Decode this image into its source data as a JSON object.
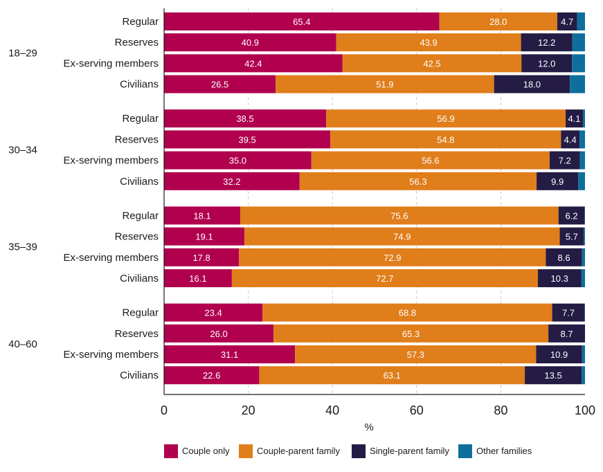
{
  "chart_data": {
    "type": "bar",
    "orientation": "horizontal",
    "stacked": true,
    "title": "",
    "xlabel": "%",
    "ylabel": "",
    "xlim": [
      0,
      100
    ],
    "xticks": [
      0,
      20,
      40,
      60,
      80,
      100
    ],
    "grid": "vertical dashed",
    "legend_position": "bottom",
    "series": [
      {
        "name": "Couple only",
        "color": "#b0004e"
      },
      {
        "name": "Couple-parent family",
        "color": "#e07e1b"
      },
      {
        "name": "Single-parent family",
        "color": "#241c44"
      },
      {
        "name": "Other families",
        "color": "#0f6f9c"
      }
    ],
    "groups": [
      {
        "label": "18–29",
        "rows": [
          {
            "label": "Regular",
            "values": [
              65.4,
              28.0,
              4.7,
              1.9
            ],
            "data_labels": [
              "65.4",
              "28.0",
              "4.7",
              ""
            ]
          },
          {
            "label": "Reserves",
            "values": [
              40.9,
              43.9,
              12.2,
              3.0
            ],
            "data_labels": [
              "40.9",
              "43.9",
              "12.2",
              ""
            ]
          },
          {
            "label": "Ex-serving members",
            "values": [
              42.4,
              42.5,
              12.0,
              3.1
            ],
            "data_labels": [
              "42.4",
              "42.5",
              "12.0",
              ""
            ]
          },
          {
            "label": "Civilians",
            "values": [
              26.5,
              51.9,
              18.0,
              3.6
            ],
            "data_labels": [
              "26.5",
              "51.9",
              "18.0",
              ""
            ]
          }
        ]
      },
      {
        "label": "30–34",
        "rows": [
          {
            "label": "Regular",
            "values": [
              38.5,
              56.9,
              4.1,
              0.5
            ],
            "data_labels": [
              "38.5",
              "56.9",
              "4.1",
              ""
            ]
          },
          {
            "label": "Reserves",
            "values": [
              39.5,
              54.8,
              4.4,
              1.3
            ],
            "data_labels": [
              "39.5",
              "54.8",
              "4.4",
              ""
            ]
          },
          {
            "label": "Ex-serving members",
            "values": [
              35.0,
              56.6,
              7.2,
              1.2
            ],
            "data_labels": [
              "35.0",
              "56.6",
              "7.2",
              ""
            ]
          },
          {
            "label": "Civilians",
            "values": [
              32.2,
              56.3,
              9.9,
              1.6
            ],
            "data_labels": [
              "32.2",
              "56.3",
              "9.9",
              ""
            ]
          }
        ]
      },
      {
        "label": "35–39",
        "rows": [
          {
            "label": "Regular",
            "values": [
              18.1,
              75.6,
              6.2,
              0.1
            ],
            "data_labels": [
              "18.1",
              "75.6",
              "6.2",
              ""
            ]
          },
          {
            "label": "Reserves",
            "values": [
              19.1,
              74.9,
              5.7,
              0.3
            ],
            "data_labels": [
              "19.1",
              "74.9",
              "5.7",
              ""
            ]
          },
          {
            "label": "Ex-serving members",
            "values": [
              17.8,
              72.9,
              8.6,
              0.7
            ],
            "data_labels": [
              "17.8",
              "72.9",
              "8.6",
              ""
            ]
          },
          {
            "label": "Civilians",
            "values": [
              16.1,
              72.7,
              10.3,
              0.9
            ],
            "data_labels": [
              "16.1",
              "72.7",
              "10.3",
              ""
            ]
          }
        ]
      },
      {
        "label": "40–60",
        "rows": [
          {
            "label": "Regular",
            "values": [
              23.4,
              68.8,
              7.7,
              0.1
            ],
            "data_labels": [
              "23.4",
              "68.8",
              "7.7",
              ""
            ]
          },
          {
            "label": "Reserves",
            "values": [
              26.0,
              65.3,
              8.7,
              0.0
            ],
            "data_labels": [
              "26.0",
              "65.3",
              "8.7",
              ""
            ]
          },
          {
            "label": "Ex-serving members",
            "values": [
              31.1,
              57.3,
              10.9,
              0.7
            ],
            "data_labels": [
              "31.1",
              "57.3",
              "10.9",
              ""
            ]
          },
          {
            "label": "Civilians",
            "values": [
              22.6,
              63.1,
              13.5,
              0.8
            ],
            "data_labels": [
              "22.6",
              "63.1",
              "13.5",
              ""
            ]
          }
        ]
      }
    ]
  }
}
